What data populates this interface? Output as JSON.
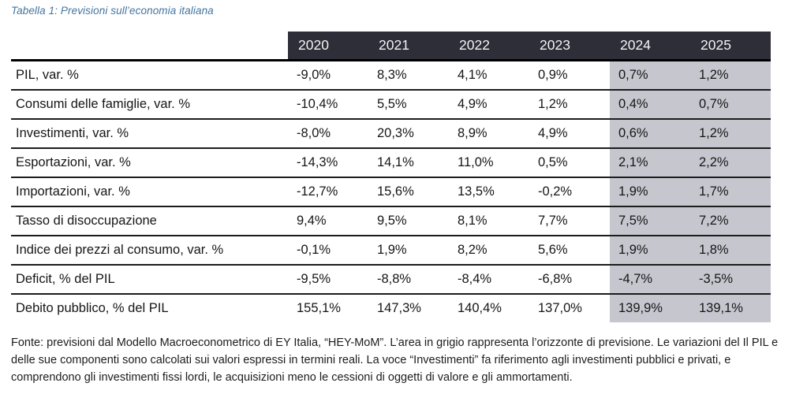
{
  "caption": "Tabella 1: Previsioni sull’economia italiana",
  "table": {
    "columns": [
      "2020",
      "2021",
      "2022",
      "2023",
      "2024",
      "2025"
    ],
    "forecast_columns": [
      "2024",
      "2025"
    ],
    "rows": [
      {
        "label": "PIL, var. %",
        "values": [
          "-9,0%",
          "8,3%",
          "4,1%",
          "0,9%",
          "0,7%",
          "1,2%"
        ]
      },
      {
        "label": "Consumi delle famiglie, var. %",
        "values": [
          "-10,4%",
          "5,5%",
          "4,9%",
          "1,2%",
          "0,4%",
          "0,7%"
        ]
      },
      {
        "label": "Investimenti, var. %",
        "values": [
          "-8,0%",
          "20,3%",
          "8,9%",
          "4,9%",
          "0,6%",
          "1,2%"
        ]
      },
      {
        "label": "Esportazioni, var. %",
        "values": [
          "-14,3%",
          "14,1%",
          "11,0%",
          "0,5%",
          "2,1%",
          "2,2%"
        ]
      },
      {
        "label": "Importazioni, var. %",
        "values": [
          "-12,7%",
          "15,6%",
          "13,5%",
          "-0,2%",
          "1,9%",
          "1,7%"
        ]
      },
      {
        "label": "Tasso di disoccupazione",
        "values": [
          "9,4%",
          "9,5%",
          "8,1%",
          "7,7%",
          "7,5%",
          "7,2%"
        ]
      },
      {
        "label": "Indice dei prezzi al consumo, var. %",
        "values": [
          "-0,1%",
          "1,9%",
          "8,2%",
          "5,6%",
          "1,9%",
          "1,8%"
        ]
      },
      {
        "label": "Deficit, % del PIL",
        "values": [
          "-9,5%",
          "-8,8%",
          "-8,4%",
          "-6,8%",
          "-4,7%",
          "-3,5%"
        ]
      },
      {
        "label": "Debito pubblico, % del PIL",
        "values": [
          "155,1%",
          "147,3%",
          "140,4%",
          "137,0%",
          "139,9%",
          "139,1%"
        ]
      }
    ]
  },
  "source_note": "Fonte: previsioni dal Modello Macroeconometrico di EY Italia, “HEY-MoM”. L’area in grigio rappresenta l’orizzonte di previsione. Le variazioni del Il PIL e delle sue componenti sono calcolati sui valori espressi in termini reali. La voce “Investimenti” fa riferimento agli investimenti pubblici e privati, e comprendono gli investimenti fissi lordi, le acquisizioni meno le cessioni di oggetti di valore e gli ammortamenti.",
  "colors": {
    "header_bg": "#2e2e38",
    "forecast_bg": "#c6c6cf",
    "caption_color": "#44759f"
  }
}
